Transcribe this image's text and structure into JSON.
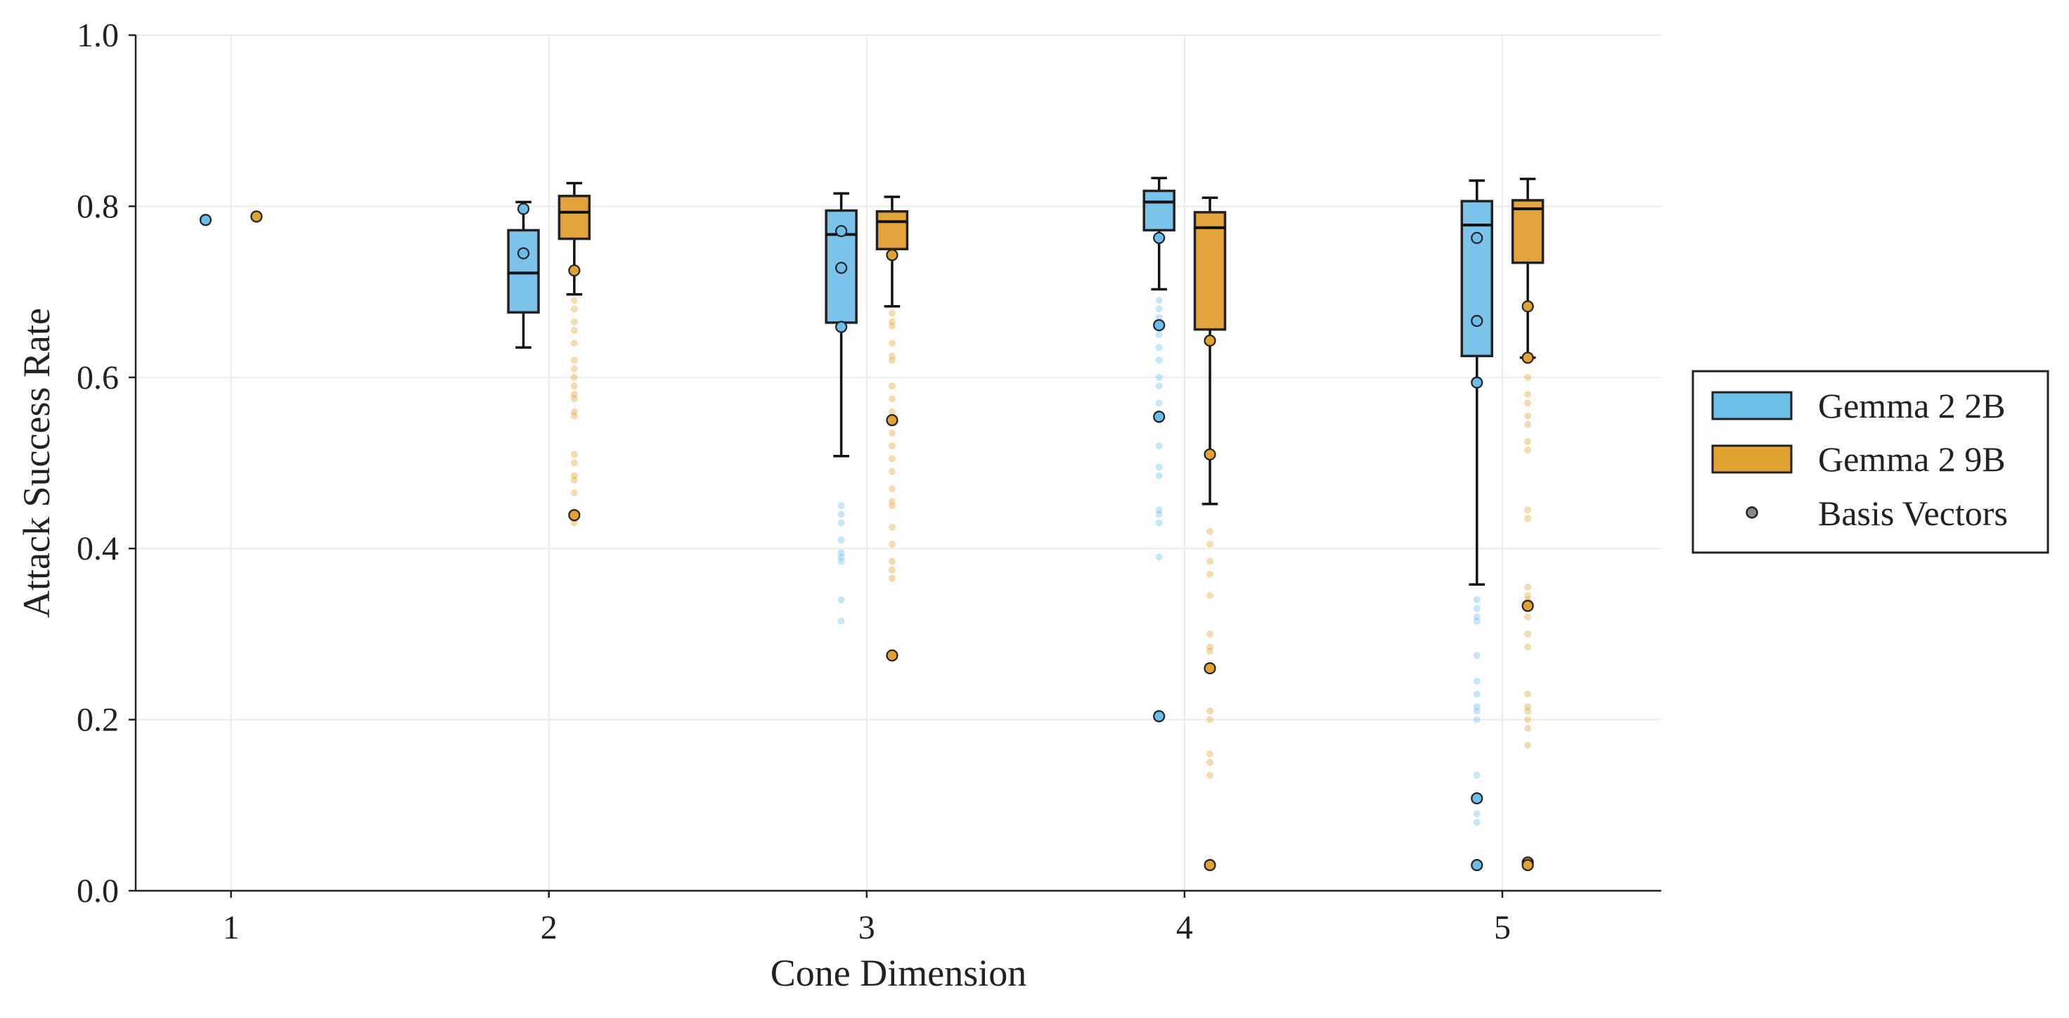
{
  "chart_data": {
    "type": "box",
    "title": "",
    "xlabel": "Cone Dimension",
    "ylabel": "Attack Success Rate",
    "ylim": [
      0.0,
      1.0
    ],
    "xlim": [
      0.7,
      5.5
    ],
    "grid": true,
    "legend_position": "right",
    "x_ticks": [
      "1",
      "2",
      "3",
      "4",
      "5"
    ],
    "x_tick_values": [
      1,
      2,
      3,
      4,
      5
    ],
    "y_ticks": [
      "0.0",
      "0.2",
      "0.4",
      "0.6",
      "0.8",
      "1.0"
    ],
    "y_tick_values": [
      0.0,
      0.2,
      0.4,
      0.6,
      0.8,
      1.0
    ],
    "legend": {
      "entries": [
        {
          "label": "Gemma 2 2B",
          "kind": "box",
          "color": "#6cbde9"
        },
        {
          "label": "Gemma 2 9B",
          "kind": "box",
          "color": "#e2a232"
        },
        {
          "label": "Basis Vectors",
          "kind": "point",
          "color": "#888888"
        }
      ]
    },
    "series": [
      {
        "name": "Gemma 2 2B",
        "color": "#6cbde9",
        "fill": "#7cc3ec",
        "boxes": [
          {
            "x": 2,
            "q1": 0.676,
            "median": 0.722,
            "q3": 0.772,
            "whisker_low": 0.635,
            "whisker_high": 0.805
          },
          {
            "x": 3,
            "q1": 0.664,
            "median": 0.767,
            "q3": 0.795,
            "whisker_low": 0.508,
            "whisker_high": 0.815
          },
          {
            "x": 4,
            "q1": 0.772,
            "median": 0.805,
            "q3": 0.818,
            "whisker_low": 0.703,
            "whisker_high": 0.833
          },
          {
            "x": 5,
            "q1": 0.625,
            "median": 0.778,
            "q3": 0.806,
            "whisker_low": 0.358,
            "whisker_high": 0.83
          }
        ],
        "outliers": [
          {
            "x": 3,
            "values": [
              0.45,
              0.44,
              0.43,
              0.41,
              0.395,
              0.39,
              0.385,
              0.34,
              0.315
            ]
          },
          {
            "x": 4,
            "values": [
              0.69,
              0.68,
              0.67,
              0.65,
              0.635,
              0.62,
              0.6,
              0.59,
              0.57,
              0.55,
              0.52,
              0.495,
              0.485,
              0.445,
              0.44,
              0.43,
              0.39
            ]
          },
          {
            "x": 5,
            "values": [
              0.34,
              0.33,
              0.32,
              0.315,
              0.275,
              0.245,
              0.23,
              0.215,
              0.21,
              0.2,
              0.135,
              0.105,
              0.09,
              0.08
            ]
          }
        ],
        "basis_vectors": [
          {
            "x": 1,
            "values": [
              0.784
            ]
          },
          {
            "x": 2,
            "values": [
              0.797,
              0.745
            ]
          },
          {
            "x": 3,
            "values": [
              0.771,
              0.728,
              0.659
            ]
          },
          {
            "x": 4,
            "values": [
              0.763,
              0.661,
              0.554,
              0.204
            ]
          },
          {
            "x": 5,
            "values": [
              0.763,
              0.666,
              0.594,
              0.108,
              0.03
            ]
          }
        ]
      },
      {
        "name": "Gemma 2 9B",
        "color": "#e2a232",
        "fill": "#e3a33a",
        "boxes": [
          {
            "x": 2,
            "q1": 0.762,
            "median": 0.793,
            "q3": 0.812,
            "whisker_low": 0.697,
            "whisker_high": 0.827
          },
          {
            "x": 3,
            "q1": 0.75,
            "median": 0.782,
            "q3": 0.794,
            "whisker_low": 0.683,
            "whisker_high": 0.811
          },
          {
            "x": 4,
            "q1": 0.656,
            "median": 0.775,
            "q3": 0.793,
            "whisker_low": 0.452,
            "whisker_high": 0.81
          },
          {
            "x": 5,
            "q1": 0.734,
            "median": 0.797,
            "q3": 0.807,
            "whisker_low": 0.623,
            "whisker_high": 0.832
          }
        ],
        "outliers": [
          {
            "x": 2,
            "values": [
              0.69,
              0.68,
              0.665,
              0.655,
              0.64,
              0.62,
              0.61,
              0.6,
              0.59,
              0.58,
              0.575,
              0.56,
              0.555,
              0.51,
              0.5,
              0.485,
              0.48,
              0.465,
              0.435,
              0.43
            ]
          },
          {
            "x": 3,
            "values": [
              0.675,
              0.665,
              0.66,
              0.64,
              0.625,
              0.62,
              0.59,
              0.575,
              0.56,
              0.535,
              0.52,
              0.505,
              0.49,
              0.47,
              0.455,
              0.45,
              0.425,
              0.405,
              0.385,
              0.375,
              0.365
            ]
          },
          {
            "x": 4,
            "values": [
              0.42,
              0.405,
              0.385,
              0.37,
              0.345,
              0.3,
              0.285,
              0.28,
              0.21,
              0.2,
              0.16,
              0.15,
              0.135
            ]
          },
          {
            "x": 5,
            "values": [
              0.62,
              0.6,
              0.58,
              0.57,
              0.555,
              0.545,
              0.525,
              0.515,
              0.445,
              0.435,
              0.355,
              0.345,
              0.34,
              0.32,
              0.3,
              0.285,
              0.23,
              0.215,
              0.21,
              0.2,
              0.19,
              0.17
            ]
          }
        ],
        "basis_vectors": [
          {
            "x": 1,
            "values": [
              0.788
            ]
          },
          {
            "x": 2,
            "values": [
              0.725,
              0.439
            ]
          },
          {
            "x": 3,
            "values": [
              0.743,
              0.55,
              0.275
            ]
          },
          {
            "x": 4,
            "values": [
              0.643,
              0.51,
              0.26,
              0.03
            ]
          },
          {
            "x": 5,
            "values": [
              0.683,
              0.623,
              0.333,
              0.033,
              0.03
            ]
          }
        ]
      }
    ]
  }
}
